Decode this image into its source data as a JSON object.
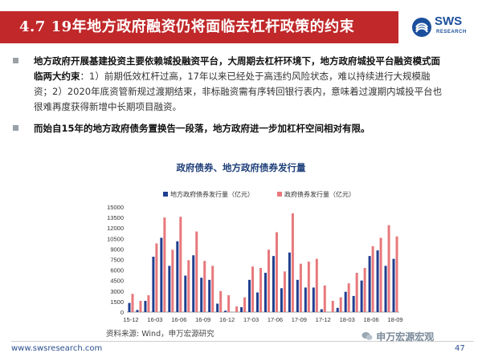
{
  "header": {
    "title": "4.7 19年地方政府融资仍将面临去杠杆政策的约束"
  },
  "logo": {
    "text": "SWS",
    "sub": "RESEARCH",
    "icon": "sws-logo-icon"
  },
  "bullets": [
    {
      "bold": "地方政府开展基建投资主要依赖城投融资平台，大周期去杠杆环境下，地方政府城投平台融资模式面临两大约束",
      "normal": "：1）前期低效杠杆过高，17年以来已经处于高违约风险状态，难以持续进行大规模融资；2）2020年底资管新规过渡期结束，非标融资需有序转回银行表内，意味着过渡期内城投平台也很难再度获得新增中长期项目融资。"
    },
    {
      "bold": "而始自15年的地方政府债务置换告一段落，地方政府进一步加杠杆空间相对有限。",
      "normal": ""
    }
  ],
  "chart_data": {
    "type": "bar",
    "title": "政府债券、地方政府债券发行量",
    "legend_position": "top",
    "ylim": [
      0,
      15000
    ],
    "yticks": [
      0,
      1500,
      3000,
      4500,
      6000,
      7500,
      9000,
      10500,
      12000,
      13500,
      15000
    ],
    "x_tick_labels": [
      "15-12",
      "16-03",
      "16-06",
      "16-09",
      "16-12",
      "17-03",
      "17-06",
      "17-09",
      "17-12",
      "18-03",
      "18-06",
      "18-09"
    ],
    "categories": [
      "15-12",
      "16-01",
      "16-02",
      "16-03",
      "16-04",
      "16-05",
      "16-06",
      "16-07",
      "16-08",
      "16-09",
      "16-10",
      "16-11",
      "16-12",
      "17-01",
      "17-02",
      "17-03",
      "17-04",
      "17-05",
      "17-06",
      "17-07",
      "17-08",
      "17-09",
      "17-10",
      "17-11",
      "17-12",
      "18-01",
      "18-02",
      "18-03",
      "18-04",
      "18-05",
      "18-06",
      "18-07",
      "18-08",
      "18-09"
    ],
    "series": [
      {
        "name": "地方政府债券发行量（亿元）",
        "color": "#1f3f8f",
        "values": [
          1300,
          300,
          1600,
          7900,
          10600,
          6600,
          10100,
          5200,
          8100,
          4900,
          4600,
          1200,
          200,
          0,
          700,
          4600,
          2800,
          5600,
          8000,
          3400,
          8500,
          4600,
          3500,
          3500,
          400,
          0,
          600,
          2900,
          2300,
          4500,
          8000,
          8800,
          6600,
          7600
        ]
      },
      {
        "name": "政府债券发行量（亿元）",
        "color": "#e8787c",
        "values": [
          2600,
          1600,
          2400,
          9800,
          13500,
          8900,
          13600,
          7400,
          11500,
          7300,
          6600,
          3000,
          2400,
          800,
          2100,
          6500,
          6300,
          8900,
          11400,
          5800,
          14100,
          6900,
          7200,
          7600,
          3800,
          1600,
          2100,
          4100,
          5600,
          6300,
          9400,
          10600,
          12400,
          10800
        ]
      }
    ]
  },
  "source": "资料来源: Wind，申万宏源研究",
  "footer": {
    "url": "www.swsresearch.com",
    "page": "47",
    "watermark": "申万宏源宏观"
  }
}
